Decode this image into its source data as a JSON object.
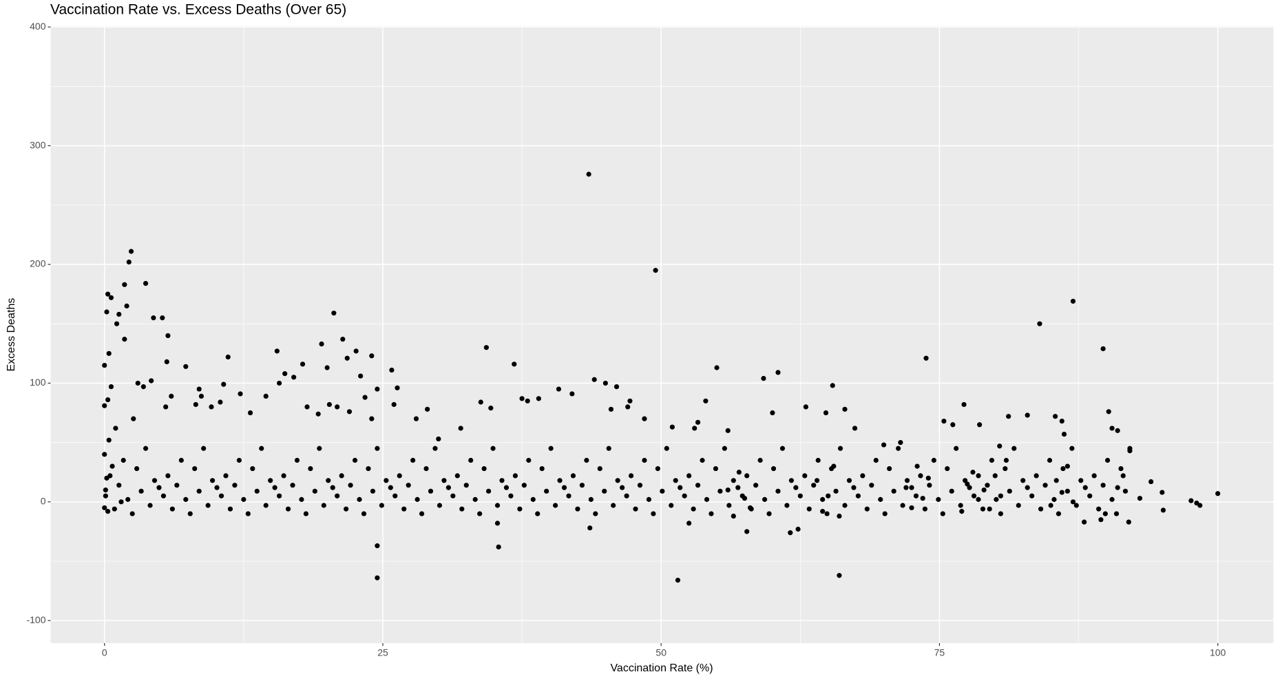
{
  "chart_data": {
    "type": "scatter",
    "title": "Vaccination Rate vs. Excess Deaths (Over 65)",
    "x_label": "Vaccination Rate (%)",
    "y_label": "Excess Deaths",
    "color": "#000000",
    "xlim": [
      -4.84,
      105
    ],
    "ylim": [
      -119,
      400.7
    ],
    "xticks": [
      0,
      25,
      50,
      75,
      100
    ],
    "yticks": [
      -100,
      0,
      100,
      200,
      300,
      400
    ],
    "minor_xticks": [
      12.5,
      37.5,
      62.5,
      87.5
    ],
    "minor_yticks": [
      -50,
      50,
      150,
      250,
      350
    ],
    "grid": true,
    "x": [
      43.5,
      49.5,
      2.4,
      2.2,
      1.8,
      3.7,
      0.3,
      0.6,
      0.2,
      1.3,
      1.1,
      2,
      1.8,
      4.4,
      5.2,
      5.7,
      0.4,
      0,
      5.6,
      7.3,
      20.6,
      21.4,
      19.5,
      11.1,
      15.5,
      22.6,
      24,
      21.8,
      23,
      17.8,
      17,
      16.2,
      15.7,
      20,
      34.3,
      36.8,
      25.8,
      26.3,
      24.5,
      55,
      60.5,
      59.2,
      65.4,
      73.8,
      84,
      87,
      89.7,
      44,
      45,
      46,
      24.5,
      24.5,
      35.4,
      51.5,
      66,
      61.6,
      62.3,
      57.7,
      52.5,
      43.6,
      35.3,
      81.2,
      82.9,
      85.4,
      77.2,
      90.2,
      90.5,
      91,
      92.1,
      94,
      95,
      95.1,
      97.6,
      98.1,
      98.4,
      100,
      93,
      92,
      88,
      89.5,
      89.9,
      28,
      30,
      29,
      40.8,
      42,
      39,
      38,
      37.5,
      54,
      53.3,
      53,
      56,
      51,
      60,
      63,
      64.8,
      66.5,
      67.4,
      70,
      71.5,
      75.4,
      76.2,
      78.6,
      80.4,
      47.2,
      48.5,
      10.4,
      9.6,
      8.5,
      8.7,
      8.2,
      5.5,
      6,
      3.5,
      3,
      4.2,
      0.6,
      0.3,
      0,
      13.1,
      14.5,
      12.2,
      10.7,
      18.2,
      19.2,
      20.2,
      20.9,
      22,
      23.4,
      24,
      26,
      33.8,
      34.7,
      32,
      86,
      86.2,
      91.5,
      45.5,
      47,
      0.1,
      0.5,
      0.9,
      1.3,
      1.7,
      2.1,
      2.5,
      2.9,
      3.3,
      3.7,
      4.1,
      4.5,
      4.9,
      5.3,
      5.7,
      6.1,
      6.5,
      6.9,
      7.3,
      7.7,
      8.1,
      8.5,
      8.9,
      9.3,
      9.7,
      10.1,
      10.5,
      10.9,
      11.3,
      11.7,
      12.1,
      12.5,
      12.9,
      13.3,
      13.7,
      14.1,
      14.5,
      14.9,
      15.3,
      15.7,
      16.1,
      16.5,
      16.9,
      17.3,
      17.7,
      18.1,
      18.5,
      18.9,
      19.3,
      19.7,
      20.1,
      20.5,
      20.9,
      21.3,
      21.7,
      22.1,
      22.5,
      22.9,
      23.3,
      23.7,
      24.1,
      24.5,
      24.9,
      25.3,
      25.7,
      26.1,
      26.5,
      26.9,
      27.3,
      27.7,
      28.1,
      28.5,
      28.9,
      29.3,
      29.7,
      30.1,
      30.5,
      30.9,
      31.3,
      31.7,
      32.1,
      32.5,
      32.9,
      33.3,
      33.7,
      34.1,
      34.5,
      34.9,
      35.3,
      35.7,
      36.1,
      36.5,
      36.9,
      37.3,
      37.7,
      38.1,
      38.5,
      38.9,
      39.3,
      39.7,
      40.1,
      40.5,
      40.9,
      41.3,
      41.7,
      42.1,
      42.5,
      42.9,
      43.3,
      43.7,
      44.1,
      44.5,
      44.9,
      45.3,
      45.7,
      46.1,
      46.5,
      46.9,
      47.3,
      47.7,
      48.1,
      48.5,
      48.9,
      49.3,
      49.7,
      50.1,
      50.5,
      50.9,
      51.3,
      51.7,
      52.1,
      52.5,
      52.9,
      53.3,
      53.7,
      54.1,
      54.5,
      54.9,
      55.3,
      55.7,
      56.1,
      56.5,
      56.9,
      57.3,
      57.7,
      58.1,
      58.5,
      58.9,
      59.3,
      59.7,
      60.1,
      60.5,
      60.9,
      61.3,
      61.7,
      62.1,
      62.5,
      62.9,
      63.3,
      63.7,
      64.1,
      64.5,
      64.9,
      65.3,
      65.7,
      66.1,
      66.5,
      66.9,
      67.3,
      67.7,
      68.1,
      68.5,
      68.9,
      69.3,
      69.7,
      70.1,
      70.5,
      70.9,
      71.3,
      71.7,
      72.1,
      72.5,
      72.9,
      73.3,
      73.7,
      74.1,
      74.5,
      74.9,
      75.3,
      75.7,
      76.1,
      76.5,
      76.9,
      77.3,
      77.7,
      78.1,
      78.5,
      78.9,
      79.3,
      79.7,
      80.1,
      80.5,
      80.9,
      81.3,
      81.7,
      82.1,
      82.5,
      82.9,
      83.3,
      83.7,
      84.1,
      84.5,
      84.9,
      85.3,
      85.7,
      86.1,
      86.5,
      86.9,
      87.3,
      87.7,
      88.1,
      88.5,
      88.9,
      89.3,
      89.7,
      90.1,
      90.5,
      90.9,
      91.3,
      91.7,
      92.1,
      0,
      0,
      0.2,
      0.4,
      0.1,
      0.3,
      0.7,
      1,
      1.5,
      2.6,
      56,
      56.5,
      57,
      57.5,
      58,
      64,
      64.5,
      65,
      65.5,
      66,
      72,
      72.5,
      73,
      73.5,
      74,
      77,
      77.5,
      78,
      78.5,
      79,
      79.5,
      80,
      80.5,
      81,
      85,
      85.5,
      86,
      86.5,
      87,
      91
    ],
    "values": [
      276,
      195,
      211,
      202,
      183,
      184,
      175,
      172,
      160,
      158,
      150,
      165,
      137,
      155,
      155,
      140,
      125,
      115,
      118,
      114,
      159,
      137,
      133,
      122,
      127,
      127,
      123,
      121,
      106,
      116,
      105,
      108,
      100,
      113,
      130,
      116,
      111,
      96,
      95,
      113,
      109,
      104,
      98,
      121,
      150,
      169,
      129,
      103,
      100,
      97,
      -37,
      -64,
      -38,
      -66,
      -62,
      -26,
      -23,
      -25,
      -18,
      -22,
      -18,
      72,
      73,
      72,
      82,
      76,
      62,
      60,
      43,
      17,
      8,
      -7,
      1,
      -1,
      -3,
      7,
      3,
      -17,
      -17,
      -15,
      -10,
      70,
      53,
      78,
      95,
      91,
      87,
      85,
      87,
      85,
      67,
      62,
      60,
      63,
      75,
      80,
      75,
      78,
      62,
      48,
      50,
      68,
      65,
      65,
      47,
      85,
      70,
      84,
      80,
      95,
      89,
      82,
      80,
      89,
      97,
      100,
      102,
      97,
      86,
      81,
      75,
      89,
      91,
      99,
      80,
      74,
      82,
      80,
      76,
      88,
      70,
      82,
      84,
      79,
      62,
      68,
      57,
      22,
      78,
      80,
      5,
      22,
      -6,
      14,
      35,
      2,
      -10,
      28,
      9,
      45,
      -3,
      18,
      12,
      5,
      22,
      -6,
      14,
      35,
      2,
      -10,
      28,
      9,
      45,
      -3,
      18,
      12,
      5,
      22,
      -6,
      14,
      35,
      2,
      -10,
      28,
      9,
      45,
      -3,
      18,
      12,
      5,
      22,
      -6,
      14,
      35,
      2,
      -10,
      28,
      9,
      45,
      -3,
      18,
      12,
      5,
      22,
      -6,
      14,
      35,
      2,
      -10,
      28,
      9,
      45,
      -3,
      18,
      12,
      5,
      22,
      -6,
      14,
      35,
      2,
      -10,
      28,
      9,
      45,
      -3,
      18,
      12,
      5,
      22,
      -6,
      14,
      35,
      2,
      -10,
      28,
      9,
      45,
      -3,
      18,
      12,
      5,
      22,
      -6,
      14,
      35,
      2,
      -10,
      28,
      9,
      45,
      -3,
      18,
      12,
      5,
      22,
      -6,
      14,
      35,
      2,
      -10,
      28,
      9,
      45,
      -3,
      18,
      12,
      5,
      22,
      -6,
      14,
      35,
      2,
      -10,
      28,
      9,
      45,
      -3,
      18,
      12,
      5,
      22,
      -6,
      14,
      35,
      2,
      -10,
      28,
      9,
      45,
      -3,
      18,
      12,
      5,
      22,
      -6,
      14,
      35,
      2,
      -10,
      28,
      9,
      45,
      -3,
      18,
      12,
      5,
      22,
      -6,
      14,
      35,
      2,
      -10,
      28,
      9,
      45,
      -3,
      18,
      12,
      5,
      22,
      -6,
      14,
      35,
      2,
      -10,
      28,
      9,
      45,
      -3,
      18,
      12,
      5,
      22,
      -6,
      14,
      35,
      2,
      -10,
      28,
      9,
      45,
      -3,
      18,
      12,
      5,
      22,
      -6,
      14,
      35,
      2,
      -10,
      28,
      9,
      45,
      -3,
      18,
      12,
      5,
      22,
      -6,
      14,
      35,
      2,
      -10,
      28,
      9,
      45,
      -3,
      18,
      12,
      5,
      22,
      -6,
      14,
      35,
      2,
      -10,
      28,
      9,
      45,
      40,
      -5,
      20,
      52,
      10,
      -8,
      30,
      62,
      0,
      70,
      10,
      -12,
      25,
      3,
      -5,
      18,
      -8,
      5,
      30,
      -12,
      12,
      -5,
      30,
      3,
      20,
      -8,
      15,
      25,
      2,
      10,
      -6,
      22,
      5,
      35,
      -3,
      18,
      8,
      30,
      0,
      12
    ]
  }
}
